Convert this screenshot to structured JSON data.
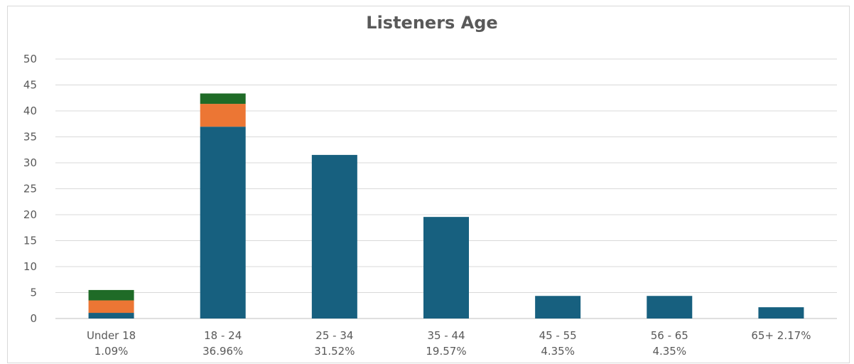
{
  "chart_data": {
    "type": "bar",
    "stacked": true,
    "title": "Listeners Age",
    "xlabel": "",
    "ylabel": "",
    "ylim": [
      0,
      50
    ],
    "yticks": [
      0,
      5,
      10,
      15,
      20,
      25,
      30,
      35,
      40,
      45,
      50
    ],
    "grid": true,
    "legend": "none",
    "categories": [
      [
        "Under 18",
        "1.09%"
      ],
      [
        "18 - 24",
        "36.96%"
      ],
      [
        "25 - 34",
        "31.52%"
      ],
      [
        "35 - 44",
        "19.57%"
      ],
      [
        "45 - 55",
        "4.35%"
      ],
      [
        "56 - 65",
        "4.35%"
      ],
      [
        "65+ 2.17%"
      ]
    ],
    "series": [
      {
        "color": "#17607f",
        "values": [
          1.09,
          36.96,
          31.52,
          19.57,
          4.35,
          4.35,
          2.17
        ]
      },
      {
        "color": "#ec7634",
        "values": [
          2.4,
          4.4,
          0,
          0,
          0,
          0,
          0
        ]
      },
      {
        "color": "#1f6b27",
        "values": [
          2.0,
          2.0,
          0,
          0,
          0,
          0,
          0
        ]
      }
    ]
  }
}
